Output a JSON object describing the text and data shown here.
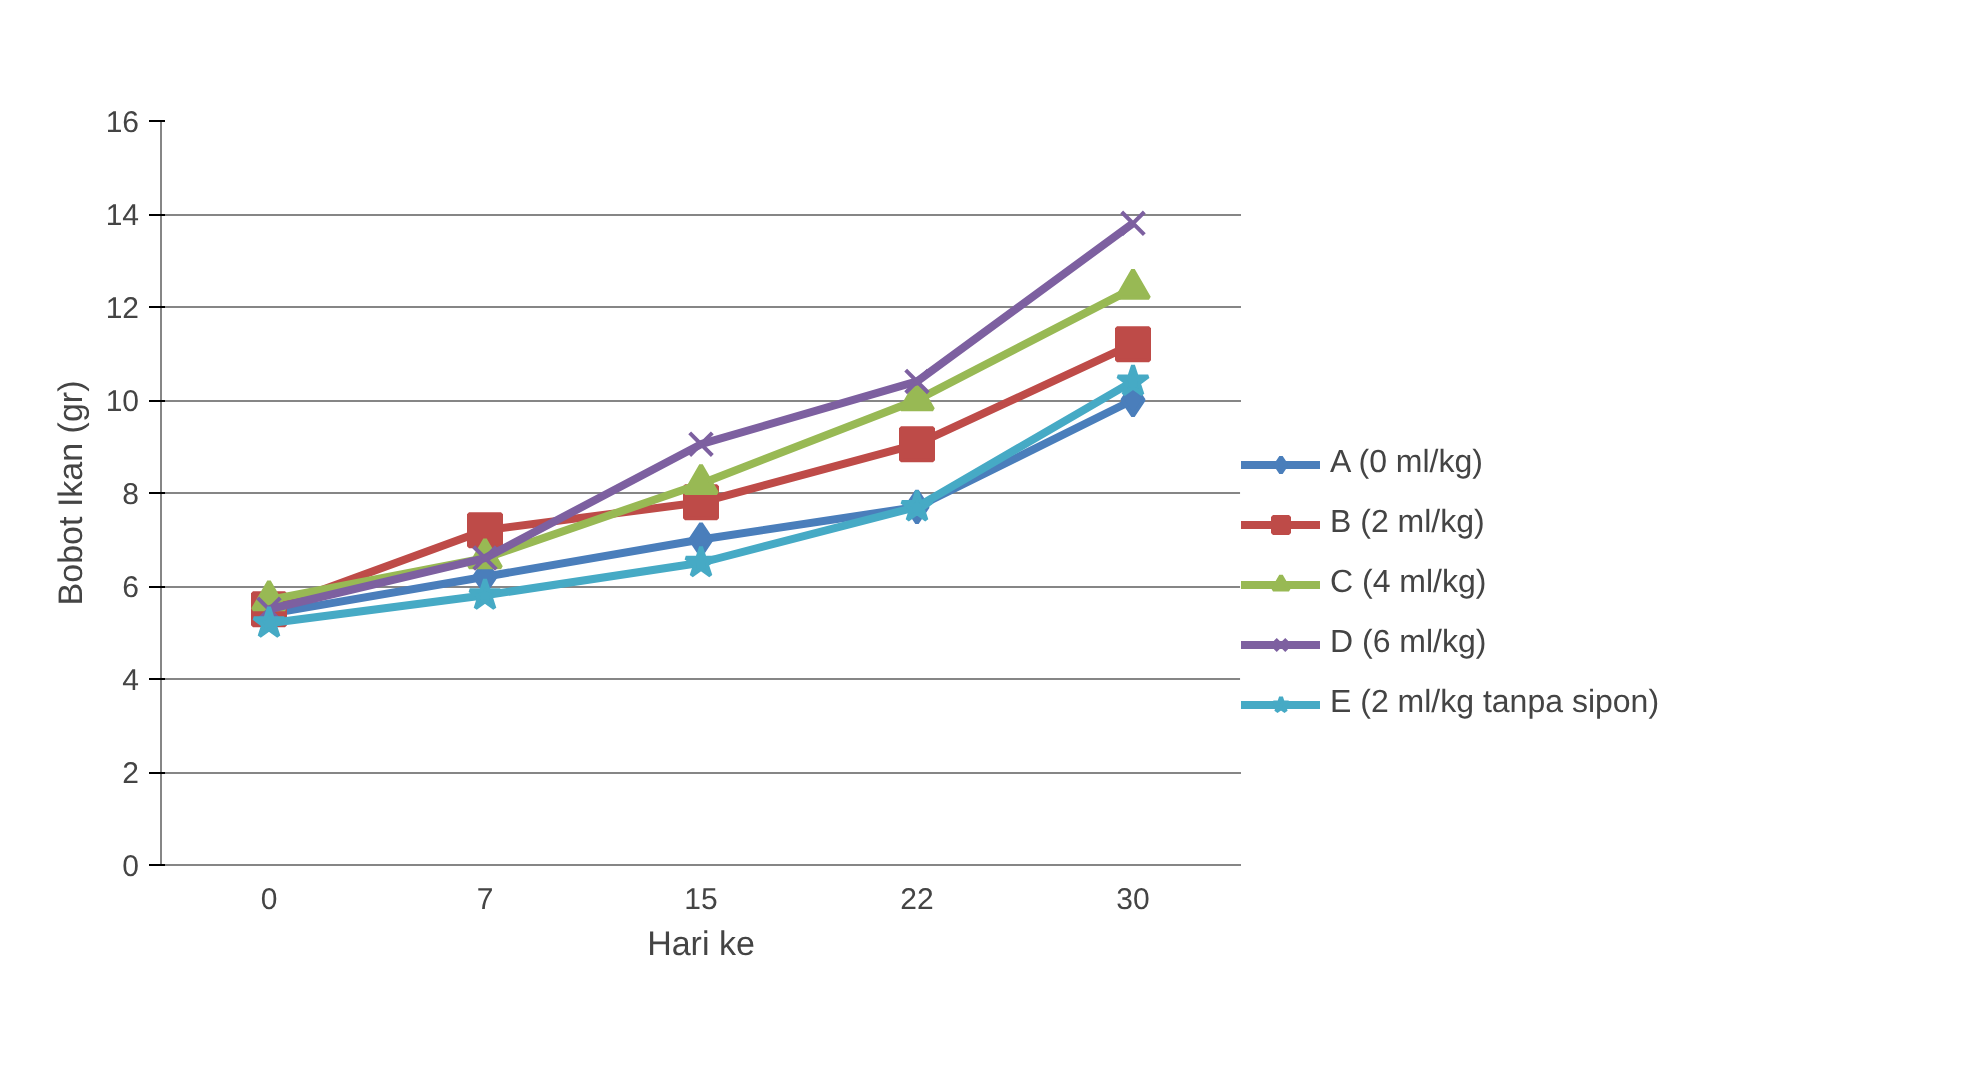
{
  "chart_data": {
    "type": "line",
    "xlabel": "Hari ke",
    "ylabel": "Bobot Ikan (gr)",
    "categories": [
      "0",
      "7",
      "15",
      "22",
      "30"
    ],
    "ylim": [
      0,
      16
    ],
    "yticks": [
      0,
      2,
      4,
      6,
      8,
      10,
      12,
      14,
      16
    ],
    "grid": "y",
    "legend": "right",
    "series": [
      {
        "name": "A (0 ml/kg)",
        "color": "#4a7ebb",
        "marker": "diamond",
        "values": [
          5.4,
          6.2,
          7.0,
          7.7,
          10.0
        ]
      },
      {
        "name": "B (2 ml/kg)",
        "color": "#be4b48",
        "marker": "square",
        "values": [
          5.5,
          7.2,
          7.8,
          9.05,
          11.2
        ]
      },
      {
        "name": "C (4 ml/kg)",
        "color": "#98b954",
        "marker": "triangle",
        "values": [
          5.7,
          6.6,
          8.2,
          10.0,
          12.4
        ]
      },
      {
        "name": "D (6 ml/kg)",
        "color": "#7d60a0",
        "marker": "cross",
        "values": [
          5.5,
          6.6,
          9.05,
          10.4,
          13.8
        ]
      },
      {
        "name": "E (2 ml/kg tanpa sipon)",
        "color": "#46aac5",
        "marker": "star",
        "values": [
          5.2,
          5.8,
          6.5,
          7.7,
          10.4
        ]
      }
    ]
  }
}
